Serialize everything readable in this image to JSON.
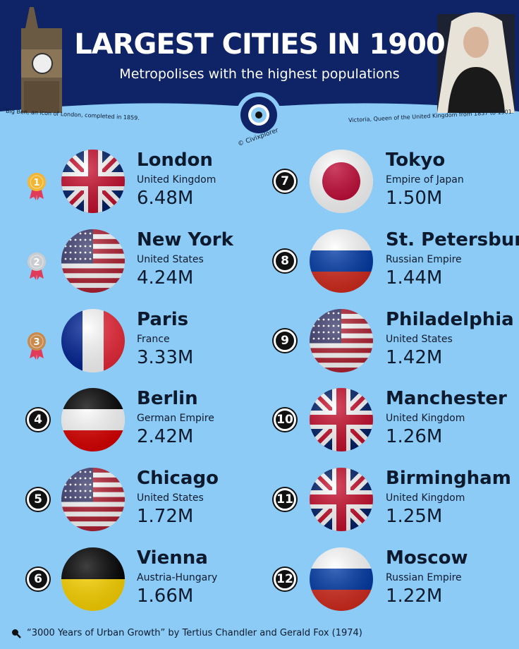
{
  "header": {
    "title": "LARGEST CITIES IN 1900",
    "subtitle": "Metropolises with the highest populations",
    "caption_left": "Big Ben, an icon of London, completed in 1859.",
    "caption_right": "Victoria, Queen of the United Kingdom from 1837 to 1901.",
    "logo_text": "© Civixplorer"
  },
  "colors": {
    "background": "#8ccbf5",
    "header": "#0f2466",
    "gold": "#f2b632",
    "silver": "#c9ccd0",
    "bronze": "#c98a4e"
  },
  "cities": [
    {
      "rank": "1",
      "name": "London",
      "country": "United Kingdom",
      "population": "6.48M",
      "flag": "uk",
      "medal": "gold"
    },
    {
      "rank": "2",
      "name": "New York",
      "country": "United States",
      "population": "4.24M",
      "flag": "us",
      "medal": "silver"
    },
    {
      "rank": "3",
      "name": "Paris",
      "country": "France",
      "population": "3.33M",
      "flag": "fr",
      "medal": "bronze"
    },
    {
      "rank": "4",
      "name": "Berlin",
      "country": "German Empire",
      "population": "2.42M",
      "flag": "de"
    },
    {
      "rank": "5",
      "name": "Chicago",
      "country": "United States",
      "population": "1.72M",
      "flag": "us"
    },
    {
      "rank": "6",
      "name": "Vienna",
      "country": "Austria-Hungary",
      "population": "1.66M",
      "flag": "at"
    },
    {
      "rank": "7",
      "name": "Tokyo",
      "country": "Empire of Japan",
      "population": "1.50M",
      "flag": "jp"
    },
    {
      "rank": "8",
      "name": "St. Petersburg",
      "country": "Russian Empire",
      "population": "1.44M",
      "flag": "ru"
    },
    {
      "rank": "9",
      "name": "Philadelphia",
      "country": "United States",
      "population": "1.42M",
      "flag": "us"
    },
    {
      "rank": "10",
      "name": "Manchester",
      "country": "United Kingdom",
      "population": "1.26M",
      "flag": "uk"
    },
    {
      "rank": "11",
      "name": "Birmingham",
      "country": "United Kingdom",
      "population": "1.25M",
      "flag": "uk"
    },
    {
      "rank": "12",
      "name": "Moscow",
      "country": "Russian Empire",
      "population": "1.22M",
      "flag": "ru"
    }
  ],
  "footer": {
    "source": "“3000 Years of Urban Growth” by Tertius Chandler and Gerald Fox (1974)",
    "icon": "magnifier-icon"
  }
}
